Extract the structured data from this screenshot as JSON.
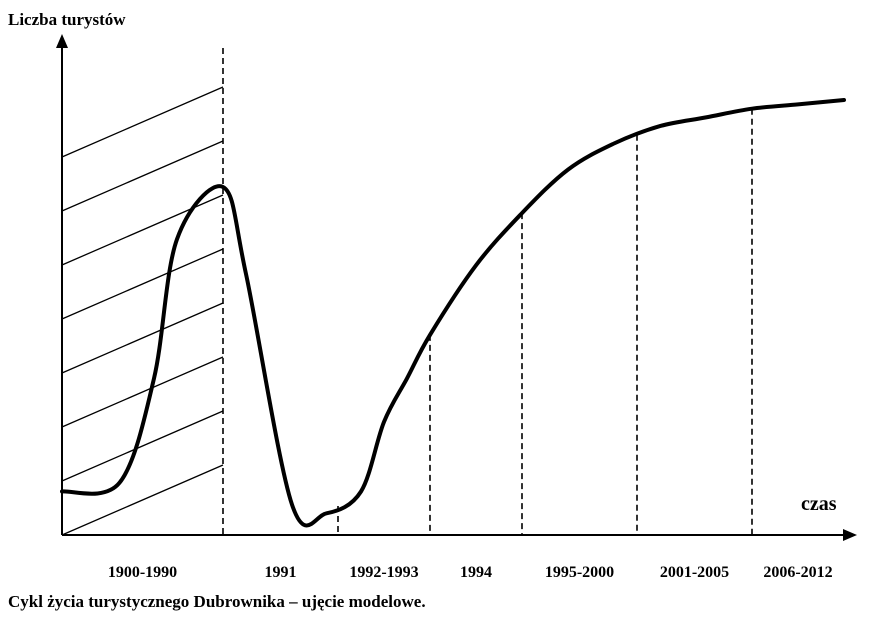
{
  "chart_data": {
    "type": "line",
    "title": "",
    "ylabel": "Liczba turystów",
    "xlabel": "czas",
    "periods": [
      "1900-1990",
      "1991",
      "1992-1993",
      "1994",
      "1995-2000",
      "2001-2005",
      "2006-2012"
    ],
    "ylim": [
      0,
      100
    ],
    "curve": {
      "x": [
        0,
        0.5,
        0.8,
        1.0,
        1.4,
        1.6,
        2.0,
        2.3,
        2.6,
        2.8,
        3.0,
        3.2,
        3.6,
        4.0,
        4.4,
        4.8,
        5.2,
        5.6,
        6.0,
        6.4,
        6.8
      ],
      "y": [
        10,
        12,
        36,
        68,
        80,
        60,
        7,
        5,
        10,
        26,
        36,
        46,
        62,
        74,
        84,
        90,
        94,
        96,
        98,
        99,
        100
      ]
    },
    "boundaries": [
      1.4,
      2.4,
      3.2,
      4.0,
      5.0,
      6.0
    ],
    "colors": {
      "line": "#000000"
    }
  },
  "caption": "Cykl życia turystycznego Dubrownika – ujęcie modelowe."
}
